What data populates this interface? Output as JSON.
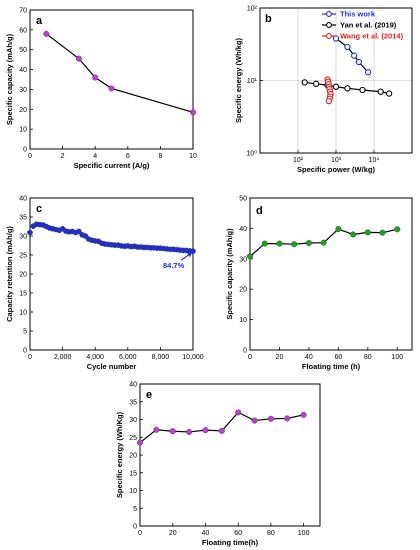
{
  "chart_data": [
    {
      "panel": "a",
      "type": "line",
      "xlabel": "Specific current (A/g)",
      "ylabel": "Specific capacity (mAh/g)",
      "xlim": [
        0,
        10
      ],
      "ylim": [
        0,
        70
      ],
      "xticks": [
        0,
        2,
        4,
        6,
        8,
        10
      ],
      "yticks": [
        0,
        10,
        20,
        30,
        40,
        50,
        60,
        70
      ],
      "series": [
        {
          "color": "#c23bd6",
          "x": [
            1,
            3,
            4,
            5,
            10
          ],
          "y": [
            58,
            45.5,
            36,
            30.5,
            18.5
          ]
        }
      ]
    },
    {
      "panel": "b",
      "type": "line",
      "xlabel": "Specific power (W/kg)",
      "ylabel": "Specific energy (Wh/kg)",
      "xscale": "log",
      "yscale": "log",
      "xlim": [
        10,
        100000
      ],
      "ylim": [
        1,
        100
      ],
      "xticks": [
        100,
        1000,
        10000
      ],
      "xtick_labels": [
        "10²",
        "10³",
        "10⁴"
      ],
      "yticks": [
        1,
        10,
        100
      ],
      "ytick_labels": [
        "10⁰",
        "10¹",
        "10²"
      ],
      "grid": true,
      "legend": "top-right",
      "series": [
        {
          "name": "This work",
          "color": "#1f2fd6",
          "x": [
            1000,
            2000,
            3000,
            4000,
            7000
          ],
          "y": [
            38,
            29,
            22,
            18,
            13
          ]
        },
        {
          "name": "Yan et al. (2019)",
          "color": "#000000",
          "x": [
            150,
            300,
            600,
            1000,
            2000,
            5000,
            15000,
            25000
          ],
          "y": [
            9.4,
            9.0,
            8.6,
            8.2,
            7.8,
            7.4,
            7.0,
            6.6
          ]
        },
        {
          "name": "Wang et al. (2014)",
          "color": "#e02020",
          "x": [
            600,
            620,
            640,
            660,
            680,
            700,
            720,
            700,
            680,
            650
          ],
          "y": [
            10.3,
            9.6,
            8.9,
            8.2,
            7.6,
            7.0,
            6.5,
            6.0,
            5.6,
            5.2
          ]
        }
      ]
    },
    {
      "panel": "c",
      "type": "scatter",
      "xlabel": "Cycle number",
      "ylabel": "Capacity retention (mAh/g)",
      "xlim": [
        0,
        10000
      ],
      "ylim": [
        0,
        40
      ],
      "xticks": [
        0,
        2000,
        4000,
        6000,
        8000,
        10000
      ],
      "xtick_labels": [
        "0",
        "2,000",
        "4,000",
        "6,000",
        "8,000",
        "10,000"
      ],
      "yticks": [
        0,
        5,
        10,
        15,
        20,
        25,
        30,
        35,
        40
      ],
      "annotation": "84.7%",
      "series": [
        {
          "color": "#1f2fd6",
          "x": [
            0,
            200,
            400,
            600,
            800,
            1000,
            1200,
            1400,
            1600,
            1800,
            2000,
            2200,
            2400,
            2600,
            2800,
            3000,
            3200,
            3400,
            3600,
            3800,
            4000,
            4200,
            4400,
            4600,
            4800,
            5000,
            5200,
            5400,
            5600,
            5800,
            6000,
            6200,
            6400,
            6600,
            6800,
            7000,
            7200,
            7400,
            7600,
            7800,
            8000,
            8200,
            8400,
            8600,
            8800,
            9000,
            9200,
            9400,
            9600,
            9800,
            10000
          ],
          "y": [
            30.9,
            32.6,
            33.1,
            33.0,
            32.9,
            32.5,
            32.1,
            31.9,
            31.7,
            31.5,
            31.9,
            31.3,
            31.1,
            31.2,
            30.9,
            31.2,
            30.3,
            30.0,
            29.2,
            28.9,
            28.7,
            28.6,
            28.1,
            27.9,
            27.8,
            27.7,
            27.6,
            27.6,
            27.4,
            27.3,
            27.4,
            27.2,
            27.3,
            27.1,
            27.1,
            27.0,
            27.0,
            26.9,
            26.9,
            26.8,
            26.8,
            26.7,
            26.6,
            26.5,
            26.5,
            26.4,
            26.3,
            26.2,
            26.2,
            26.1,
            26.0
          ]
        }
      ]
    },
    {
      "panel": "d",
      "type": "line",
      "xlabel": "Floating time (h)",
      "ylabel": "Specific capacity (mAh/g)",
      "xlim": [
        0,
        110
      ],
      "ylim": [
        0,
        50
      ],
      "xticks": [
        0,
        20,
        40,
        60,
        80,
        100
      ],
      "yticks": [
        0,
        10,
        20,
        30,
        40,
        50
      ],
      "series": [
        {
          "color": "#1aa61a",
          "x": [
            0,
            10,
            20,
            30,
            40,
            50,
            60,
            70,
            80,
            90,
            100
          ],
          "y": [
            30.8,
            35.0,
            35.0,
            34.8,
            35.2,
            35.3,
            39.8,
            38.0,
            38.7,
            38.6,
            39.7
          ]
        }
      ]
    },
    {
      "panel": "e",
      "type": "line",
      "xlabel": "Floating time(h)",
      "ylabel": "Specific energy (Wh/Kg)",
      "xlim": [
        0,
        110
      ],
      "ylim": [
        0,
        40
      ],
      "xticks": [
        0,
        20,
        40,
        60,
        80,
        100
      ],
      "yticks": [
        0,
        5,
        10,
        15,
        20,
        25,
        30,
        35,
        40
      ],
      "series": [
        {
          "color": "#c23bd6",
          "x": [
            0,
            10,
            20,
            30,
            40,
            50,
            60,
            70,
            80,
            90,
            100
          ],
          "y": [
            23.5,
            27.1,
            26.7,
            26.5,
            27.0,
            26.8,
            32.0,
            29.7,
            30.2,
            30.3,
            31.3
          ]
        }
      ]
    }
  ]
}
